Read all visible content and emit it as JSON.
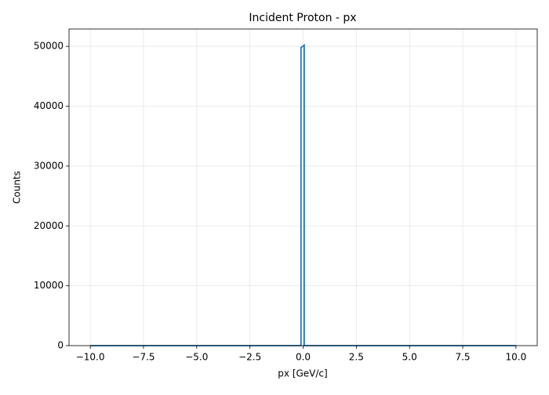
{
  "chart_data": {
    "type": "line",
    "title": "Incident Proton - px",
    "x_label": "px [GeV/c]",
    "y_label": "Counts",
    "series": [
      {
        "color": "#1f77b4",
        "x": [
          -10,
          -0.1,
          -0.1,
          0.05,
          0.05,
          10
        ],
        "values": [
          0,
          0,
          49800,
          50200,
          0,
          0
        ]
      }
    ],
    "xlim": [
      -11,
      11
    ],
    "ylim": [
      0,
      52900
    ],
    "xticks": [
      {
        "value": -10,
        "label": "−10.0"
      },
      {
        "value": -7.5,
        "label": "−7.5"
      },
      {
        "value": -5,
        "label": "−5.0"
      },
      {
        "value": -2.5,
        "label": "−2.5"
      },
      {
        "value": 0,
        "label": "0.0"
      },
      {
        "value": 2.5,
        "label": "2.5"
      },
      {
        "value": 5,
        "label": "5.0"
      },
      {
        "value": 7.5,
        "label": "7.5"
      },
      {
        "value": 10,
        "label": "10.0"
      }
    ],
    "yticks": [
      0,
      10000,
      20000,
      30000,
      40000,
      50000
    ],
    "grid": true
  }
}
